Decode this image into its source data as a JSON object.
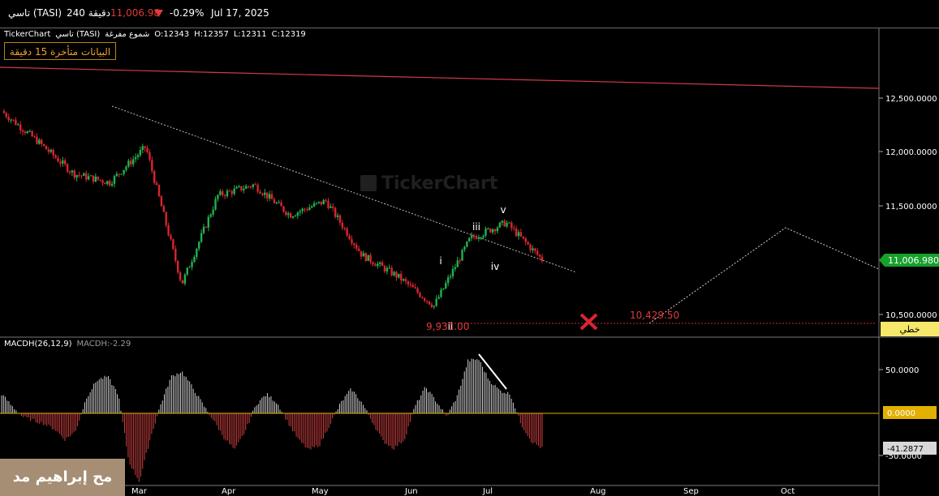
{
  "header": {
    "symbol": "تاسي (TASI)",
    "timeframe": "240 دقيقة",
    "price": "11,006.98",
    "change_pct": "-0.29%",
    "date": "Jul 17, 2025",
    "price_color": "#e03a3a"
  },
  "info_line": {
    "source": "TickerChart",
    "name": "تاسي (TASI)",
    "chart_kind": "شموع مفرغة",
    "open": "O:12343",
    "high": "H:12357",
    "low": "L:12311",
    "close": "C:12319"
  },
  "delay_notice": "البيانات متأخرة 15 دقيقة",
  "watermark": "TickerChart",
  "author": "مح إبراهيم مد",
  "chart_data": [
    {
      "type": "candlestick",
      "x_axis": {
        "ticks": [
          "Mar",
          "Apr",
          "May",
          "Jun",
          "Jul",
          "Aug",
          "Sep",
          "Oct"
        ]
      },
      "y_axis": {
        "ticks": [
          "12,500.0000",
          "12,000.0000",
          "11,500.0000",
          "10,500.0000"
        ],
        "range": [
          10400,
          12820
        ]
      },
      "series": [
        {
          "period": "late Feb",
          "close": 12380
        },
        {
          "period": "early Mar",
          "close": 12100
        },
        {
          "period": "mid Mar",
          "close": 11800
        },
        {
          "period": "late Mar",
          "close": 11720
        },
        {
          "period": "end Mar",
          "close": 12050
        },
        {
          "period": "early Apr",
          "close": 10780
        },
        {
          "period": "mid Apr",
          "close": 11600
        },
        {
          "period": "late Apr",
          "close": 11700
        },
        {
          "period": "early May",
          "close": 11420
        },
        {
          "period": "mid May",
          "close": 11550
        },
        {
          "period": "late May",
          "close": 11050
        },
        {
          "period": "early Jun",
          "close": 10850
        },
        {
          "period": "mid Jun",
          "close": 10580
        },
        {
          "period": "late Jun",
          "close": 11200
        },
        {
          "period": "early Jul",
          "close": 11350
        },
        {
          "period": "mid Jul",
          "close": 11007
        }
      ],
      "current_price_label": "11,006.9800",
      "current_price_color": "#17a02a",
      "line_label": "خطي",
      "annotations": {
        "waves": [
          "i",
          "ii",
          "iii",
          "iv",
          "v"
        ],
        "support_value": "9,931.00",
        "target_value": "10,429.50"
      },
      "colors": {
        "up": "#22b14c",
        "down": "#d9252f",
        "trendline": "#d23a4a",
        "projection": "#cccccc"
      }
    },
    {
      "type": "bar",
      "indicator": "MACDH(26,12,9)",
      "current_value": "MACDH:-2.29",
      "y_axis": {
        "ticks": [
          "50.0000",
          "0.0000",
          "-50.0000"
        ]
      },
      "zero_label": "0.0000",
      "last_label": "-41.2877",
      "colors": {
        "positive": "#cfcfcf",
        "negative": "#d04040",
        "zero_line": "#e2b000"
      }
    }
  ]
}
